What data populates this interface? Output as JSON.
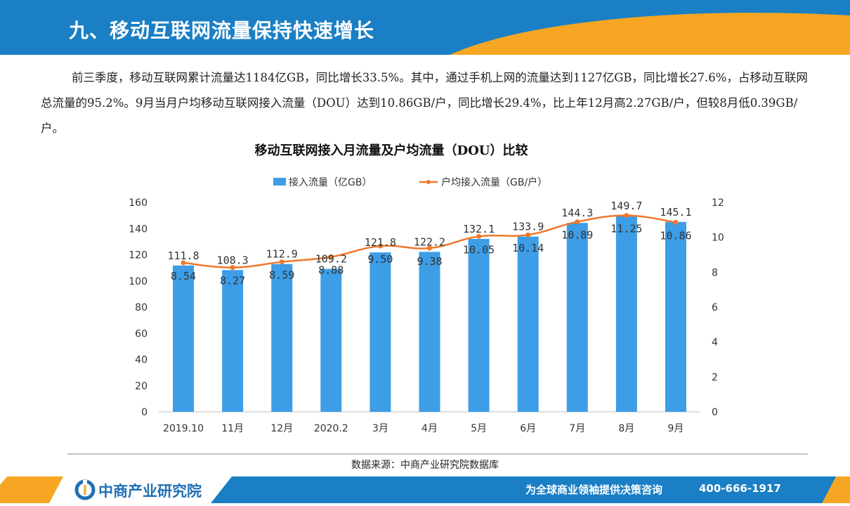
{
  "header": {
    "title": "九、移动互联网流量保持快速增长"
  },
  "intro": {
    "text": "前三季度，移动互联网累计流量达1184亿GB，同比增长33.5%。其中，通过手机上网的流量达到1127亿GB，同比增长27.6%，占移动互联网总流量的95.2%。9月当月户均移动互联网接入流量（DOU）达到10.86GB/户，同比增长29.4%，比上年12月高2.27GB/户，但较8月低0.39GB/户。"
  },
  "chart_data": {
    "type": "bar",
    "title": "移动互联网接入月流量及户均流量（DOU）比较",
    "categories": [
      "2019.10",
      "11月",
      "12月",
      "2020.2",
      "3月",
      "4月",
      "5月",
      "6月",
      "7月",
      "8月",
      "9月"
    ],
    "series": [
      {
        "name": "接入流量（亿GB）",
        "type": "bar",
        "axis": "left",
        "color": "#3d9de6",
        "values": [
          111.8,
          108.3,
          112.9,
          109.2,
          121.8,
          122.2,
          132.1,
          133.9,
          144.3,
          149.7,
          145.1
        ]
      },
      {
        "name": "户均接入流量（GB/户）",
        "type": "line",
        "axis": "right",
        "color": "#f0772a",
        "values": [
          8.54,
          8.27,
          8.59,
          8.88,
          9.5,
          9.38,
          10.05,
          10.14,
          10.89,
          11.25,
          10.86
        ]
      }
    ],
    "y_left": {
      "min": 0,
      "max": 160,
      "ticks": [
        0,
        20,
        40,
        60,
        80,
        100,
        120,
        140,
        160
      ]
    },
    "y_right": {
      "min": 0,
      "max": 12,
      "ticks": [
        0,
        2,
        4,
        6,
        8,
        10,
        12
      ]
    },
    "legend_position": "top",
    "grid": false
  },
  "footer": {
    "source": "数据来源：中商产业研究院数据库",
    "logo": "中商产业研究院",
    "slogan": "为全球商业领袖提供决策咨询",
    "phone": "400-666-1917"
  },
  "colors": {
    "header_blue": "#1a7fc4",
    "header_orange": "#f6a623",
    "bar_blue": "#3d9de6",
    "line_orange": "#f0772a"
  }
}
